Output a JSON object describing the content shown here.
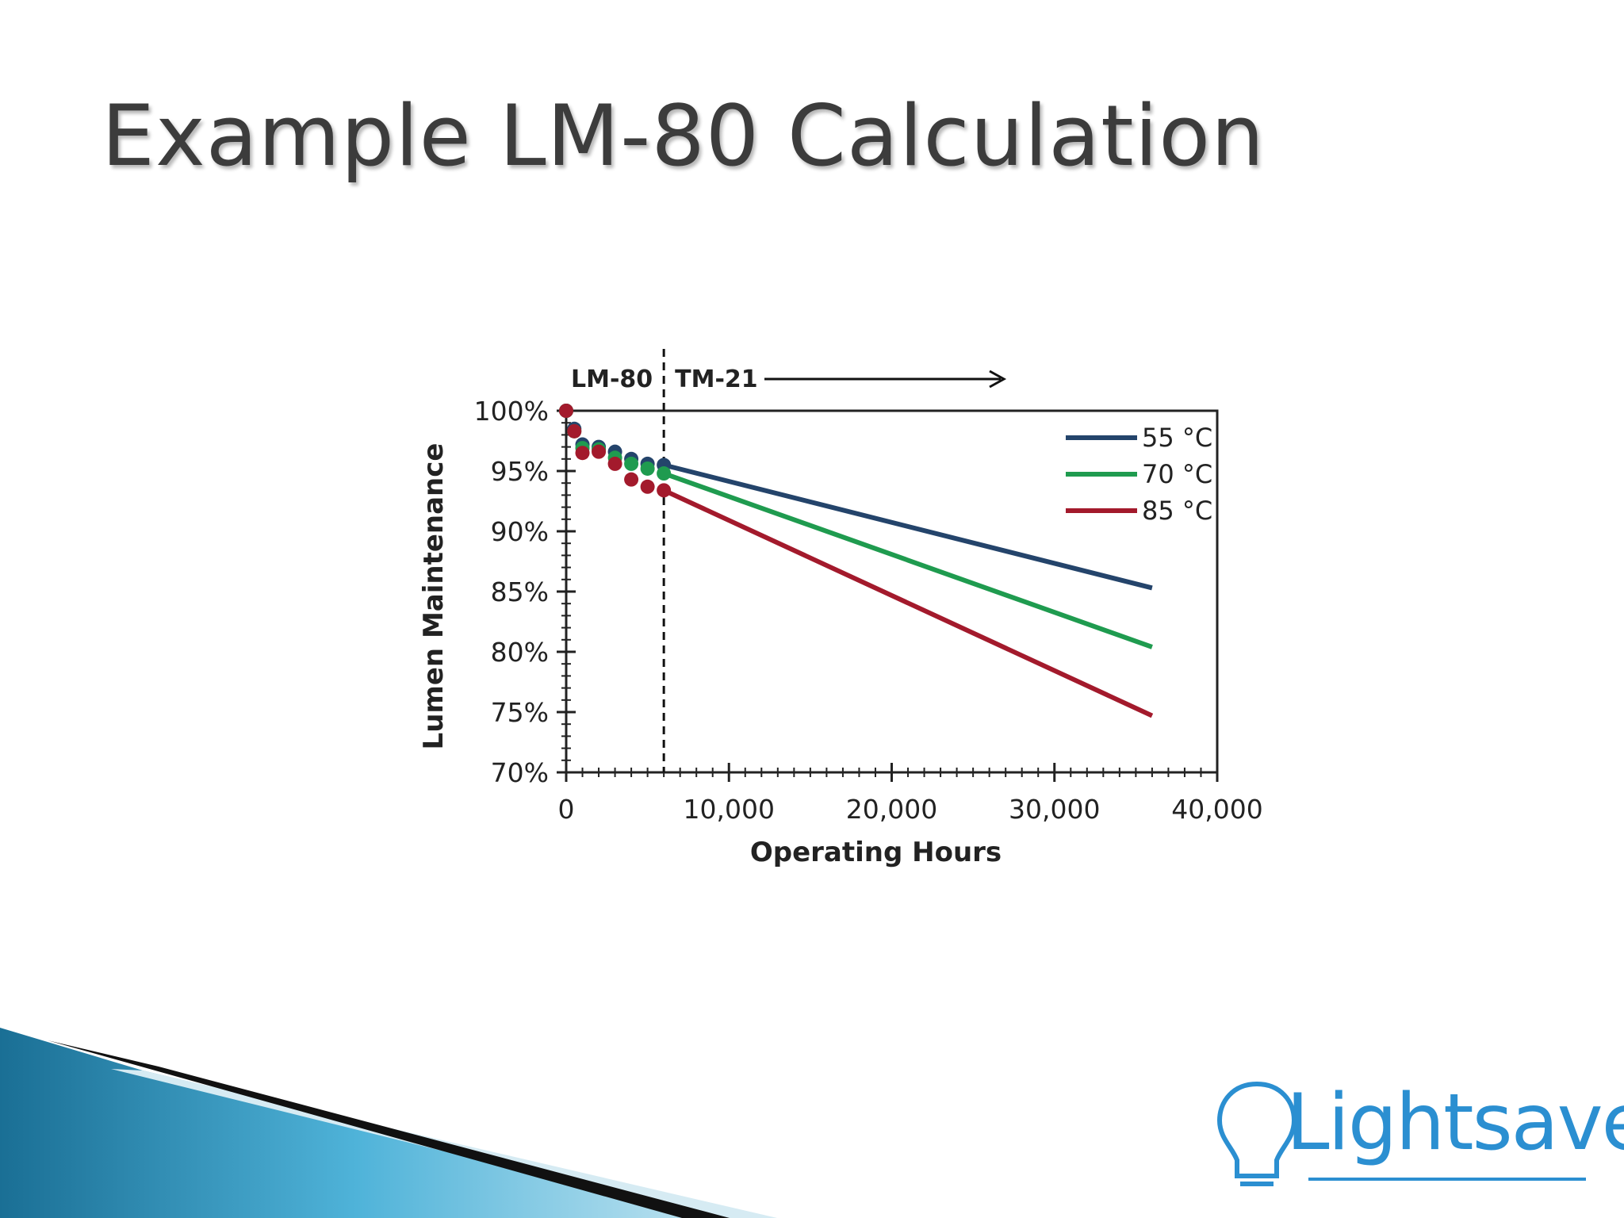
{
  "slide": {
    "title": "Example LM-80 Calculation"
  },
  "logo": {
    "text": "Lightsave",
    "color": "#2b8fd1"
  },
  "chart_data": {
    "type": "line",
    "xlabel": "Operating Hours",
    "ylabel": "Lumen Maintenance",
    "xlim": [
      0,
      40000
    ],
    "ylim": [
      70,
      100
    ],
    "x_ticks": [
      0,
      10000,
      20000,
      30000,
      40000
    ],
    "x_tick_labels": [
      "0",
      "10,000",
      "20,000",
      "30,000",
      "40,000"
    ],
    "y_ticks": [
      70,
      75,
      80,
      85,
      90,
      95,
      100
    ],
    "y_tick_labels": [
      "70%",
      "75%",
      "80%",
      "85%",
      "90%",
      "95%",
      "100%"
    ],
    "grid": false,
    "legend_position": "top-right",
    "divider": {
      "x": 6000,
      "left_label": "LM-80",
      "right_label": "TM-21"
    },
    "series": [
      {
        "name": "55 °C",
        "color": "#24446b",
        "measured_x": [
          0,
          500,
          1000,
          2000,
          3000,
          4000,
          5000,
          6000
        ],
        "measured_y": [
          100,
          98.5,
          97.2,
          97.0,
          96.6,
          96.0,
          95.6,
          95.5
        ],
        "projected_x": [
          6000,
          36000
        ],
        "projected_y": [
          95.5,
          85.3
        ]
      },
      {
        "name": "70 °C",
        "color": "#1f9b4f",
        "measured_x": [
          0,
          500,
          1000,
          2000,
          3000,
          4000,
          5000,
          6000
        ],
        "measured_y": [
          100,
          98.3,
          96.9,
          96.8,
          96.1,
          95.6,
          95.2,
          94.8
        ],
        "projected_x": [
          6000,
          36000
        ],
        "projected_y": [
          94.8,
          80.4
        ]
      },
      {
        "name": "85 °C",
        "color": "#a31a2c",
        "measured_x": [
          0,
          500,
          1000,
          2000,
          3000,
          4000,
          5000,
          6000
        ],
        "measured_y": [
          100,
          98.3,
          96.5,
          96.6,
          95.6,
          94.3,
          93.7,
          93.4
        ],
        "projected_x": [
          6000,
          36000
        ],
        "projected_y": [
          93.4,
          74.7
        ]
      }
    ]
  }
}
